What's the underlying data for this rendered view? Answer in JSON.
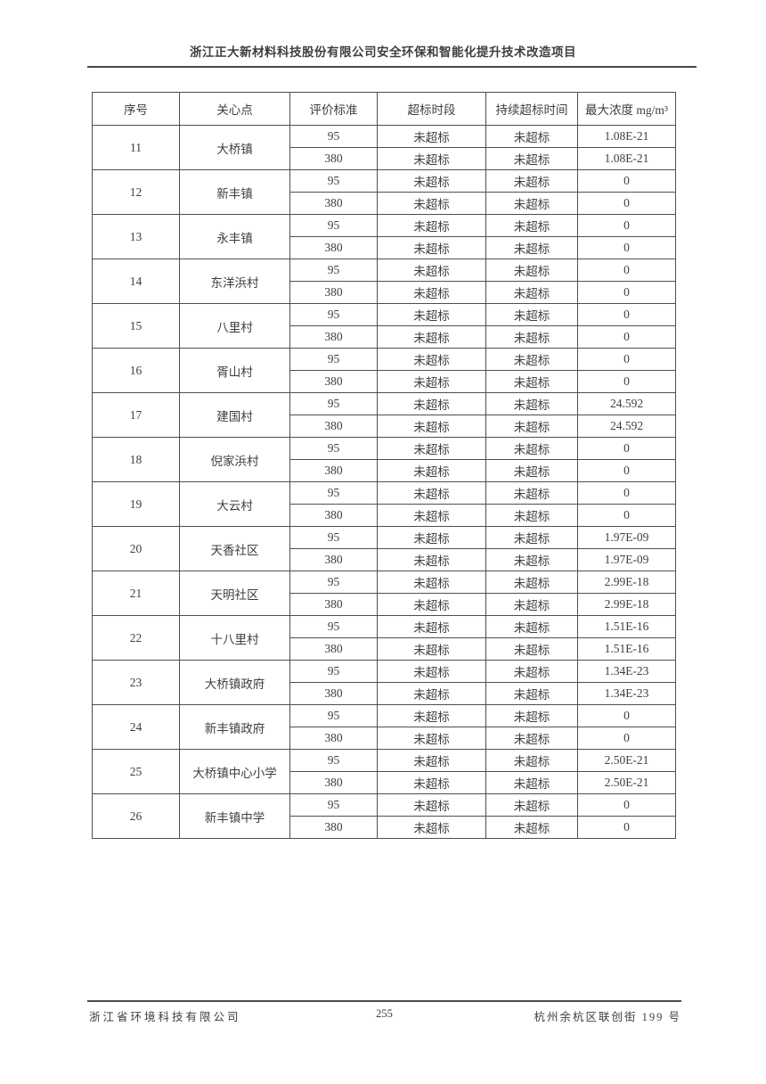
{
  "header": {
    "title": "浙江正大新材料科技股份有限公司安全环保和智能化提升技术改造项目"
  },
  "table": {
    "columns": [
      "序号",
      "关心点",
      "评价标准",
      "超标时段",
      "持续超标时间",
      "最大浓度 mg/m³"
    ],
    "rows": [
      {
        "no": "11",
        "point": "大桥镇",
        "sub": [
          [
            "95",
            "未超标",
            "未超标",
            "1.08E-21"
          ],
          [
            "380",
            "未超标",
            "未超标",
            "1.08E-21"
          ]
        ]
      },
      {
        "no": "12",
        "point": "新丰镇",
        "sub": [
          [
            "95",
            "未超标",
            "未超标",
            "0"
          ],
          [
            "380",
            "未超标",
            "未超标",
            "0"
          ]
        ]
      },
      {
        "no": "13",
        "point": "永丰镇",
        "sub": [
          [
            "95",
            "未超标",
            "未超标",
            "0"
          ],
          [
            "380",
            "未超标",
            "未超标",
            "0"
          ]
        ]
      },
      {
        "no": "14",
        "point": "东洋浜村",
        "sub": [
          [
            "95",
            "未超标",
            "未超标",
            "0"
          ],
          [
            "380",
            "未超标",
            "未超标",
            "0"
          ]
        ]
      },
      {
        "no": "15",
        "point": "八里村",
        "sub": [
          [
            "95",
            "未超标",
            "未超标",
            "0"
          ],
          [
            "380",
            "未超标",
            "未超标",
            "0"
          ]
        ]
      },
      {
        "no": "16",
        "point": "胥山村",
        "sub": [
          [
            "95",
            "未超标",
            "未超标",
            "0"
          ],
          [
            "380",
            "未超标",
            "未超标",
            "0"
          ]
        ]
      },
      {
        "no": "17",
        "point": "建国村",
        "sub": [
          [
            "95",
            "未超标",
            "未超标",
            "24.592"
          ],
          [
            "380",
            "未超标",
            "未超标",
            "24.592"
          ]
        ]
      },
      {
        "no": "18",
        "point": "倪家浜村",
        "sub": [
          [
            "95",
            "未超标",
            "未超标",
            "0"
          ],
          [
            "380",
            "未超标",
            "未超标",
            "0"
          ]
        ]
      },
      {
        "no": "19",
        "point": "大云村",
        "sub": [
          [
            "95",
            "未超标",
            "未超标",
            "0"
          ],
          [
            "380",
            "未超标",
            "未超标",
            "0"
          ]
        ]
      },
      {
        "no": "20",
        "point": "天香社区",
        "sub": [
          [
            "95",
            "未超标",
            "未超标",
            "1.97E-09"
          ],
          [
            "380",
            "未超标",
            "未超标",
            "1.97E-09"
          ]
        ]
      },
      {
        "no": "21",
        "point": "天明社区",
        "sub": [
          [
            "95",
            "未超标",
            "未超标",
            "2.99E-18"
          ],
          [
            "380",
            "未超标",
            "未超标",
            "2.99E-18"
          ]
        ]
      },
      {
        "no": "22",
        "point": "十八里村",
        "sub": [
          [
            "95",
            "未超标",
            "未超标",
            "1.51E-16"
          ],
          [
            "380",
            "未超标",
            "未超标",
            "1.51E-16"
          ]
        ]
      },
      {
        "no": "23",
        "point": "大桥镇政府",
        "sub": [
          [
            "95",
            "未超标",
            "未超标",
            "1.34E-23"
          ],
          [
            "380",
            "未超标",
            "未超标",
            "1.34E-23"
          ]
        ]
      },
      {
        "no": "24",
        "point": "新丰镇政府",
        "sub": [
          [
            "95",
            "未超标",
            "未超标",
            "0"
          ],
          [
            "380",
            "未超标",
            "未超标",
            "0"
          ]
        ]
      },
      {
        "no": "25",
        "point": "大桥镇中心小学",
        "sub": [
          [
            "95",
            "未超标",
            "未超标",
            "2.50E-21"
          ],
          [
            "380",
            "未超标",
            "未超标",
            "2.50E-21"
          ]
        ]
      },
      {
        "no": "26",
        "point": "新丰镇中学",
        "sub": [
          [
            "95",
            "未超标",
            "未超标",
            "0"
          ],
          [
            "380",
            "未超标",
            "未超标",
            "0"
          ]
        ]
      }
    ]
  },
  "footer": {
    "company": "浙江省环境科技有限公司",
    "page_number": "255",
    "address": "杭州余杭区联创街 199 号"
  },
  "colors": {
    "text": "#3e3e3e",
    "border": "#4f4f4f",
    "rule": "#4a4a4a",
    "background": "#ffffff"
  }
}
